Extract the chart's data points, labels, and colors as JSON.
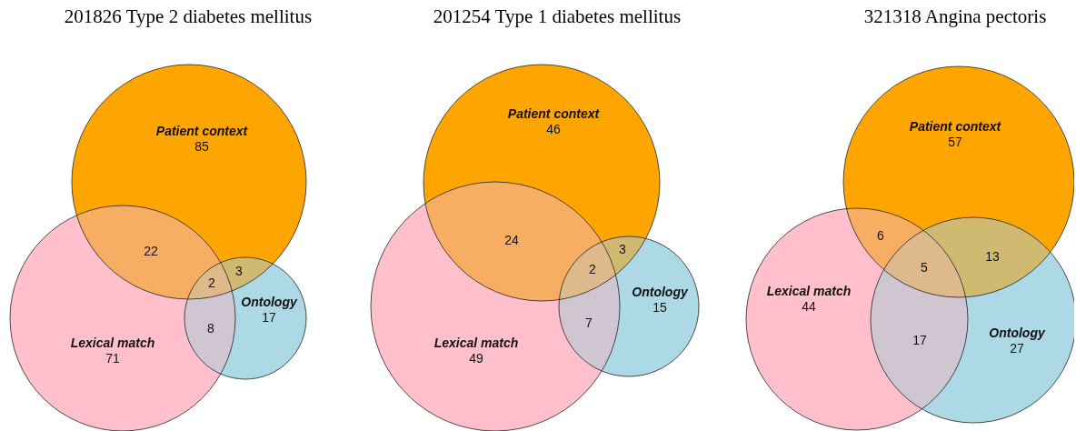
{
  "chart_data": [
    {
      "type": "other",
      "title": "201826 Type 2 diabetes mellitus",
      "categories": [
        "Patient context",
        "Lexical match",
        "Ontology"
      ],
      "values": [
        85,
        71,
        17
      ],
      "colors": [
        "#ffa500",
        "#ffc0cb",
        "#add8e6"
      ],
      "data_labels": true,
      "annotations": [
        "22",
        "3",
        "8",
        "2"
      ]
    },
    {
      "type": "other",
      "title": "201254 Type 1 diabetes mellitus",
      "categories": [
        "Patient context",
        "Lexical match",
        "Ontology"
      ],
      "values": [
        46,
        49,
        15
      ],
      "colors": [
        "#ffa500",
        "#ffc0cb",
        "#add8e6"
      ],
      "data_labels": true,
      "annotations": [
        "24",
        "3",
        "7",
        "2"
      ]
    },
    {
      "type": "other",
      "title": "321318 Angina pectoris",
      "categories": [
        "Patient context",
        "Lexical match",
        "Ontology"
      ],
      "values": [
        57,
        44,
        27
      ],
      "colors": [
        "#ffa500",
        "#ffc0cb",
        "#add8e6"
      ],
      "data_labels": true,
      "annotations": [
        "6",
        "13",
        "17",
        "5"
      ]
    }
  ]
}
